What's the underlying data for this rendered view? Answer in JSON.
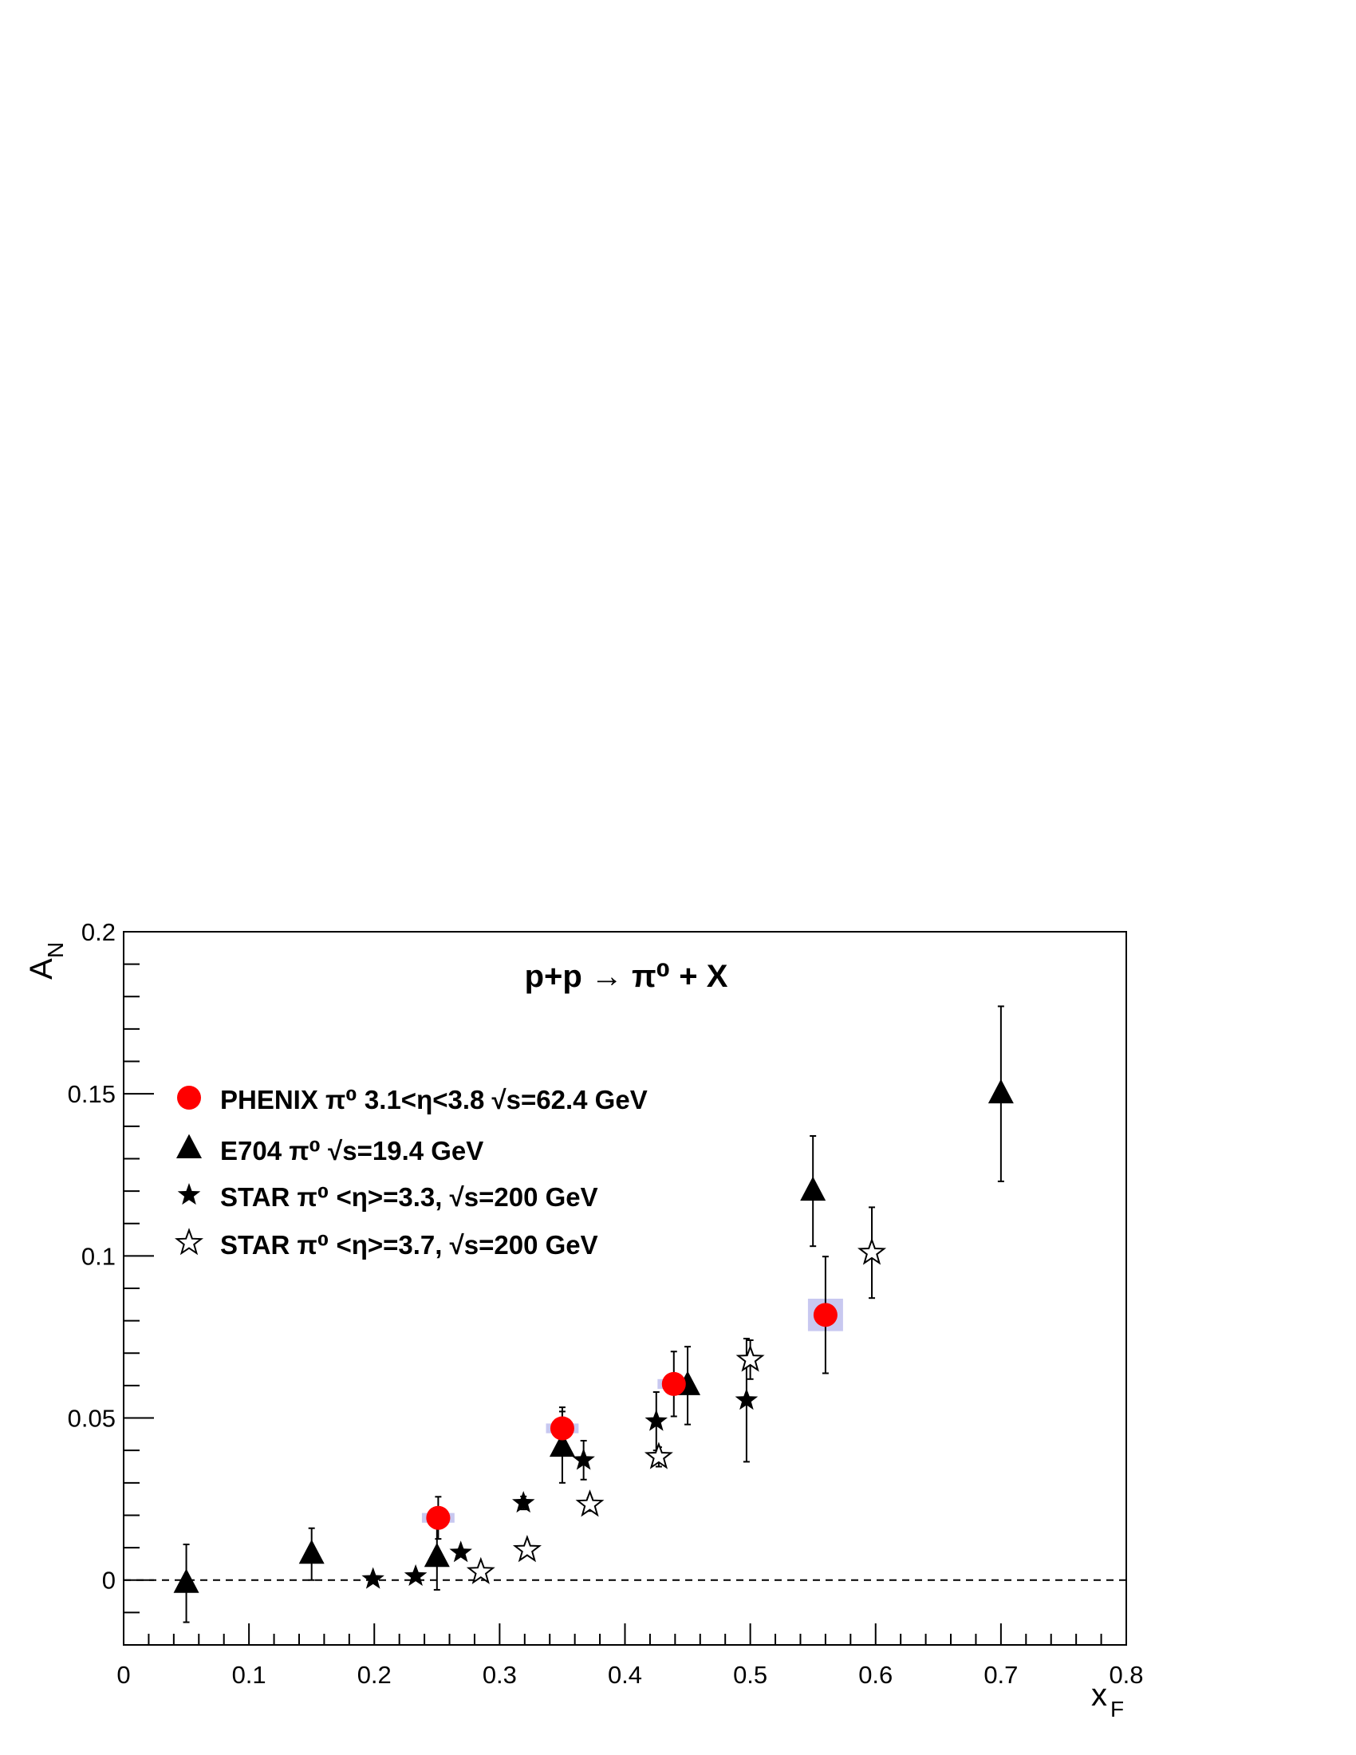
{
  "chart_data": {
    "type": "scatter",
    "title": "p+p → π⁰ + X",
    "xlabel": "x",
    "xlabel_sub": "F",
    "ylabel": "A",
    "ylabel_sub": "N",
    "xlim": [
      0,
      0.8
    ],
    "ylim": [
      -0.02,
      0.2
    ],
    "x_ticks": [
      {
        "v": 0,
        "label": "0"
      },
      {
        "v": 0.1,
        "label": "0.1"
      },
      {
        "v": 0.2,
        "label": "0.2"
      },
      {
        "v": 0.3,
        "label": "0.3"
      },
      {
        "v": 0.4,
        "label": "0.4"
      },
      {
        "v": 0.5,
        "label": "0.5"
      },
      {
        "v": 0.6,
        "label": "0.6"
      },
      {
        "v": 0.7,
        "label": "0.7"
      },
      {
        "v": 0.8,
        "label": "0.8"
      }
    ],
    "y_ticks": [
      {
        "v": 0,
        "label": "0"
      },
      {
        "v": 0.05,
        "label": "0.05"
      },
      {
        "v": 0.1,
        "label": "0.1"
      },
      {
        "v": 0.15,
        "label": "0.15"
      },
      {
        "v": 0.2,
        "label": "0.2"
      }
    ],
    "zero_line": "dashed",
    "legend_position": "top-left",
    "series": [
      {
        "name": "PHENIX π⁰ 3.1<η<3.8 √s=62.4 GeV",
        "marker": "circle",
        "color": "#ff0000",
        "syst_color": "#c8c8f0",
        "points": [
          {
            "x": 0.251,
            "y": 0.0192,
            "err": 0.0065,
            "syst_dx": 0.013,
            "syst_dy": 0.0015
          },
          {
            "x": 0.35,
            "y": 0.0468,
            "err": 0.0065,
            "syst_dx": 0.013,
            "syst_dy": 0.0015
          },
          {
            "x": 0.439,
            "y": 0.0605,
            "err": 0.01,
            "syst_dx": 0.013,
            "syst_dy": 0.0015
          },
          {
            "x": 0.56,
            "y": 0.0818,
            "err": 0.018,
            "syst_dx": 0.014,
            "syst_dy": 0.005
          }
        ]
      },
      {
        "name": "E704 π⁰ √s=19.4 GeV",
        "marker": "triangle",
        "color": "#000000",
        "points": [
          {
            "x": 0.05,
            "y": -0.001,
            "err": 0.012
          },
          {
            "x": 0.15,
            "y": 0.008,
            "err": 0.008
          },
          {
            "x": 0.25,
            "y": 0.007,
            "err": 0.01
          },
          {
            "x": 0.35,
            "y": 0.041,
            "err": 0.011
          },
          {
            "x": 0.45,
            "y": 0.06,
            "err": 0.012
          },
          {
            "x": 0.55,
            "y": 0.12,
            "err": 0.017
          },
          {
            "x": 0.7,
            "y": 0.15,
            "err": 0.027
          }
        ]
      },
      {
        "name": "STAR π⁰ <η>=3.3, √s=200 GeV",
        "marker": "star-filled",
        "color": "#000000",
        "points": [
          {
            "x": 0.199,
            "y": 0.0003,
            "err": 0.001
          },
          {
            "x": 0.233,
            "y": 0.0012,
            "err": 0.001
          },
          {
            "x": 0.269,
            "y": 0.0085,
            "err": 0.001
          },
          {
            "x": 0.319,
            "y": 0.0238,
            "err": 0.002
          },
          {
            "x": 0.367,
            "y": 0.037,
            "err": 0.006
          },
          {
            "x": 0.425,
            "y": 0.049,
            "err": 0.009
          },
          {
            "x": 0.497,
            "y": 0.0555,
            "err": 0.019
          }
        ]
      },
      {
        "name": "STAR π⁰ <η>=3.7, √s=200 GeV",
        "marker": "star-open",
        "color": "#000000",
        "points": [
          {
            "x": 0.285,
            "y": 0.0025,
            "err": 0.001
          },
          {
            "x": 0.322,
            "y": 0.0093,
            "err": 0.001
          },
          {
            "x": 0.372,
            "y": 0.0233,
            "err": 0.002
          },
          {
            "x": 0.427,
            "y": 0.038,
            "err": 0.003
          },
          {
            "x": 0.5,
            "y": 0.068,
            "err": 0.006
          },
          {
            "x": 0.597,
            "y": 0.101,
            "err": 0.014
          }
        ]
      }
    ]
  }
}
